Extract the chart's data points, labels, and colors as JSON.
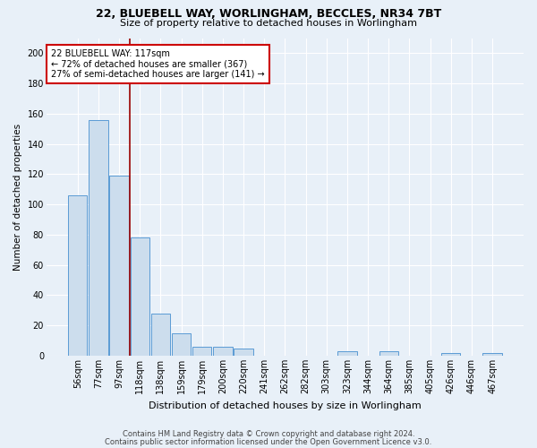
{
  "title1": "22, BLUEBELL WAY, WORLINGHAM, BECCLES, NR34 7BT",
  "title2": "Size of property relative to detached houses in Worlingham",
  "xlabel": "Distribution of detached houses by size in Worlingham",
  "ylabel": "Number of detached properties",
  "footer1": "Contains HM Land Registry data © Crown copyright and database right 2024.",
  "footer2": "Contains public sector information licensed under the Open Government Licence v3.0.",
  "bin_labels": [
    "56sqm",
    "77sqm",
    "97sqm",
    "118sqm",
    "138sqm",
    "159sqm",
    "179sqm",
    "200sqm",
    "220sqm",
    "241sqm",
    "262sqm",
    "282sqm",
    "303sqm",
    "323sqm",
    "344sqm",
    "364sqm",
    "385sqm",
    "405sqm",
    "426sqm",
    "446sqm",
    "467sqm"
  ],
  "bar_values": [
    106,
    156,
    119,
    78,
    28,
    15,
    6,
    6,
    5,
    0,
    0,
    0,
    0,
    3,
    0,
    3,
    0,
    0,
    2,
    0,
    2
  ],
  "bar_color": "#ccdded",
  "bar_edge_color": "#5b9bd5",
  "background_color": "#e8f0f8",
  "grid_color": "#ffffff",
  "vline_color": "#990000",
  "vline_x": 2.5,
  "annotation_text": "22 BLUEBELL WAY: 117sqm\n← 72% of detached houses are smaller (367)\n27% of semi-detached houses are larger (141) →",
  "annotation_box_facecolor": "#ffffff",
  "annotation_box_edgecolor": "#cc0000",
  "ylim": [
    0,
    210
  ],
  "yticks": [
    0,
    20,
    40,
    60,
    80,
    100,
    120,
    140,
    160,
    180,
    200
  ],
  "title1_fontsize": 9,
  "title2_fontsize": 8,
  "xlabel_fontsize": 8,
  "ylabel_fontsize": 7.5,
  "tick_fontsize": 7,
  "annot_fontsize": 7,
  "footer_fontsize": 6
}
